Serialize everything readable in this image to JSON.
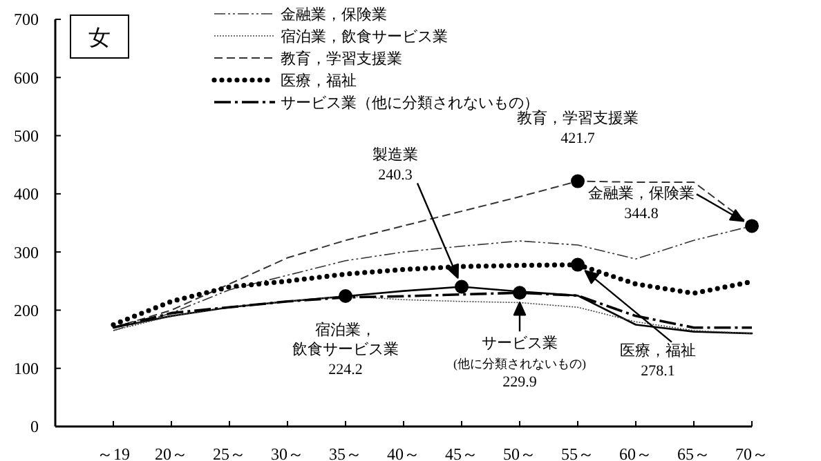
{
  "chart_data": {
    "type": "line",
    "title": "女",
    "categories": [
      "～19",
      "20～",
      "25～",
      "30～",
      "35～",
      "40～",
      "45～",
      "50～",
      "55～",
      "60～",
      "65～",
      "70～"
    ],
    "ylim": [
      0,
      700
    ],
    "yticks": [
      0,
      100,
      200,
      300,
      400,
      500,
      600,
      700
    ],
    "grid": false,
    "legend": "top",
    "marker": "none",
    "series": [
      {
        "color": "#000000",
        "line_style": "solid",
        "values": [
          170,
          190,
          205,
          215,
          224,
          233,
          240.3,
          232,
          225,
          175,
          163,
          160
        ]
      },
      {
        "name": "金融業，保険業",
        "color": "#333333",
        "line_style": "dashdotdot",
        "values": [
          165,
          195,
          235,
          260,
          285,
          300,
          310,
          319,
          312,
          288,
          320,
          344.8
        ]
      },
      {
        "name": "宿泊業，飲食サービス業",
        "color": "#444444",
        "line_style": "finedot",
        "values": [
          165,
          190,
          205,
          215,
          224.2,
          218,
          215,
          213,
          205,
          180,
          165,
          160
        ]
      },
      {
        "name": "教育，学習支援業",
        "color": "#333333",
        "line_style": "dashed",
        "values": [
          170,
          200,
          245,
          290,
          320,
          345,
          370,
          395,
          421.7,
          420,
          420,
          345
        ]
      },
      {
        "name": "医療，福祉",
        "color": "#000000",
        "line_style": "dotted",
        "values": [
          175,
          215,
          240,
          250,
          262,
          270,
          275,
          277,
          278.1,
          245,
          229,
          249
        ]
      },
      {
        "name": "サービス業（他に分類されないもの）",
        "color": "#000000",
        "line_style": "dashdot",
        "values": [
          170,
          195,
          205,
          215,
          222,
          224,
          227,
          229.9,
          225,
          190,
          170,
          170
        ]
      }
    ],
    "annotations": [
      "製造業\n240.3",
      {
        "text": "教育，学習支援業\n421.7",
        "x": "55～",
        "y": 421.7
      },
      "金融業，保険業\n344.8",
      {
        "text": "宿泊業，飲食サービス業\n224.2",
        "x": "35～",
        "y": 224.2
      },
      {
        "text": "サービス業\n$_{(他に分類されないもの)}$\n229.9",
        "x": "50～",
        "y": 229.9
      },
      "医療，福祉\n278.1"
    ]
  }
}
